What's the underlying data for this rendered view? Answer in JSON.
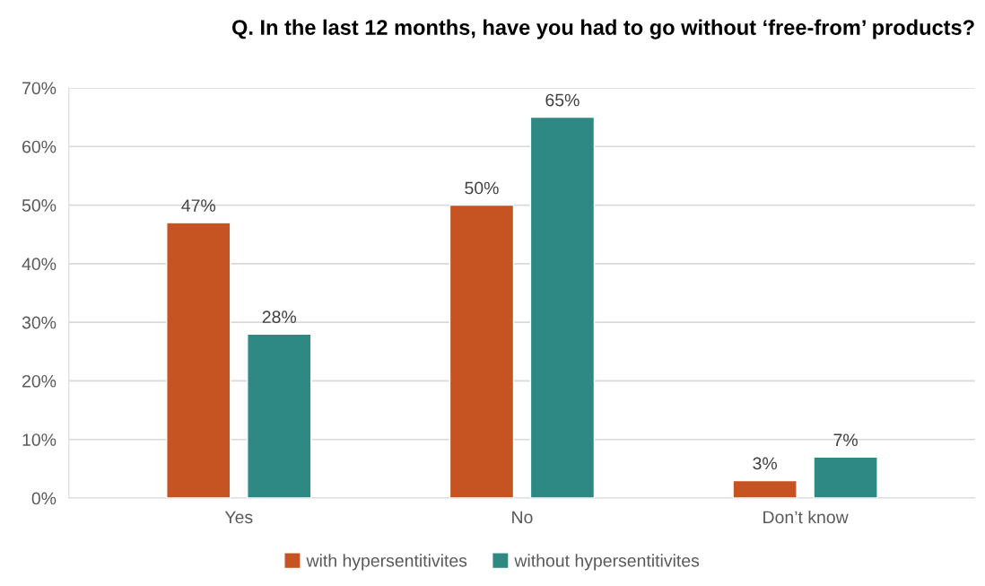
{
  "chart_data": {
    "type": "bar",
    "title": "Q. In the last 12 months, have you had to go without ‘free-from’ products?",
    "categories": [
      "Yes",
      "No",
      "Don’t know"
    ],
    "series": [
      {
        "name": "with hypersentitivites",
        "color": "#c65423",
        "values": [
          47,
          50,
          3
        ],
        "value_labels": [
          "47%",
          "50%",
          "3%"
        ]
      },
      {
        "name": "without hypersentitivites",
        "color": "#2e8985",
        "values": [
          28,
          65,
          7
        ],
        "value_labels": [
          "28%",
          "65%",
          "7%"
        ]
      }
    ],
    "ylim": [
      0,
      70
    ],
    "yticks": [
      {
        "value": 0,
        "label": "0%"
      },
      {
        "value": 10,
        "label": "10%"
      },
      {
        "value": 20,
        "label": "20%"
      },
      {
        "value": 30,
        "label": "30%"
      },
      {
        "value": 40,
        "label": "40%"
      },
      {
        "value": 50,
        "label": "50%"
      },
      {
        "value": 60,
        "label": "60%"
      },
      {
        "value": 70,
        "label": "70%"
      }
    ],
    "grid": "y",
    "legend": "bottom"
  }
}
